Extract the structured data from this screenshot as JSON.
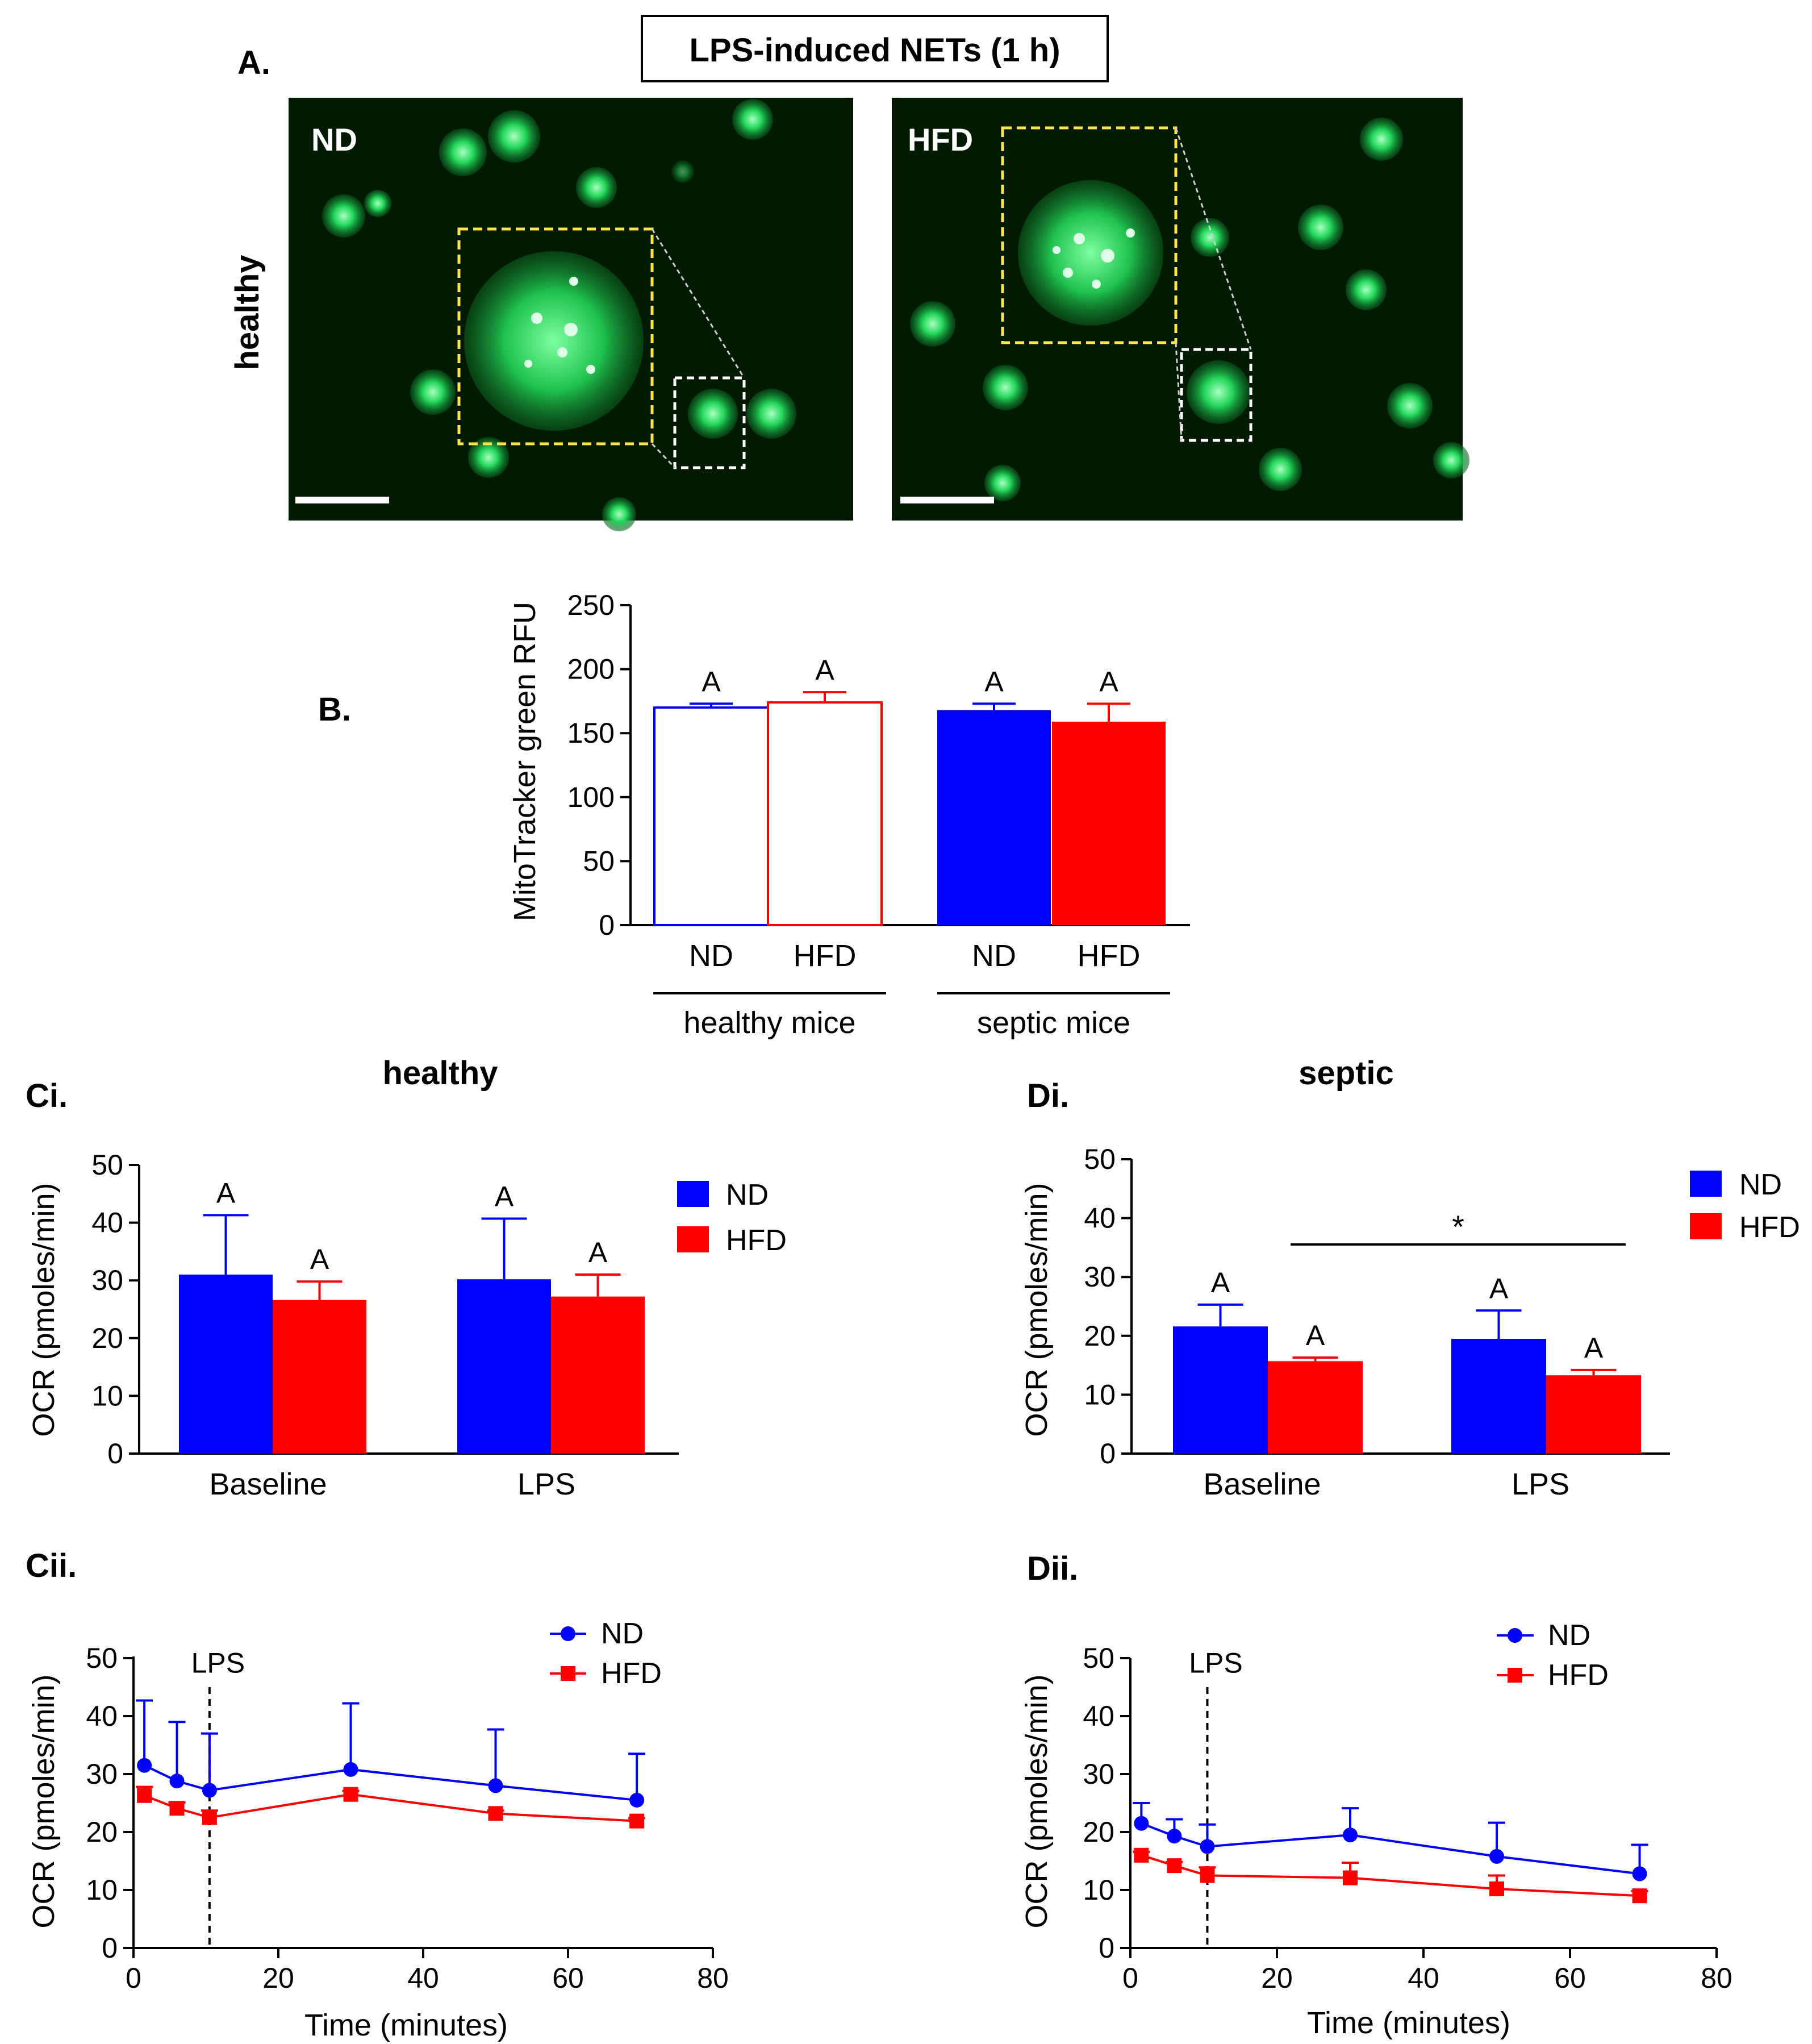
{
  "figure_title": "LPS-induced NETs (1 h)",
  "panel_labels": {
    "a": "A.",
    "b": "B.",
    "ci": "Ci.",
    "di": "Di.",
    "cii": "Cii.",
    "dii": "Dii."
  },
  "panel_a": {
    "row_label": "healthy",
    "images": [
      {
        "label": "ND",
        "description": "MitoTracker green fluorescence micrograph, neutrophils from normal-diet mice"
      },
      {
        "label": "HFD",
        "description": "MitoTracker green fluorescence micrograph, neutrophils from high-fat-diet mice"
      }
    ]
  },
  "colors": {
    "nd": "#0000ff",
    "hfd": "#ff0000",
    "axis": "#000000",
    "micrograph_bg": "#021a02",
    "cell": "#22d65a",
    "inset_yellow": "#ffe54a",
    "inset_white": "#ffffff"
  },
  "chart_data": [
    {
      "id": "B",
      "type": "bar",
      "ylabel": "MitoTracker green RFU",
      "ylim": [
        0,
        250
      ],
      "yticks": [
        0,
        50,
        100,
        150,
        200,
        250
      ],
      "categories": [
        "ND",
        "HFD",
        "ND",
        "HFD"
      ],
      "groups": [
        "healthy mice",
        "septic mice"
      ],
      "values": [
        170,
        174,
        168,
        159
      ],
      "errors": [
        3,
        8,
        5,
        14
      ],
      "annotations": [
        "A",
        "A",
        "A",
        "A"
      ],
      "styles": [
        "open-blue",
        "open-red",
        "filled-blue",
        "filled-red"
      ]
    },
    {
      "id": "Ci",
      "type": "bar",
      "title": "healthy",
      "ylabel": "OCR (pmoles/min)",
      "ylim": [
        0,
        50
      ],
      "yticks": [
        0,
        10,
        20,
        30,
        40,
        50
      ],
      "categories": [
        "Baseline",
        "LPS"
      ],
      "legend": [
        "ND",
        "HFD"
      ],
      "series": [
        {
          "name": "ND",
          "values": [
            31,
            30.2
          ],
          "errors": [
            10.3,
            10.5
          ],
          "annotations": [
            "A",
            "A"
          ]
        },
        {
          "name": "HFD",
          "values": [
            26.6,
            27.2
          ],
          "errors": [
            3.2,
            3.8
          ],
          "annotations": [
            "A",
            "A"
          ]
        }
      ]
    },
    {
      "id": "Di",
      "type": "bar",
      "title": "septic",
      "ylabel": "OCR (pmoles/min)",
      "ylim": [
        0,
        50
      ],
      "yticks": [
        0,
        10,
        20,
        30,
        40,
        50
      ],
      "categories": [
        "Baseline",
        "LPS"
      ],
      "legend": [
        "ND",
        "HFD"
      ],
      "significance": "*",
      "series": [
        {
          "name": "ND",
          "values": [
            21.6,
            19.5
          ],
          "errors": [
            3.7,
            4.8
          ],
          "annotations": [
            "A",
            "A"
          ]
        },
        {
          "name": "HFD",
          "values": [
            15.7,
            13.3
          ],
          "errors": [
            0.6,
            0.9
          ],
          "annotations": [
            "A",
            "A"
          ]
        }
      ]
    },
    {
      "id": "Cii",
      "type": "line",
      "xlabel": "Time (minutes)",
      "ylabel": "OCR (pmoles/min)",
      "xlim": [
        0,
        80
      ],
      "xticks": [
        0,
        20,
        40,
        60,
        80
      ],
      "ylim": [
        0,
        50
      ],
      "yticks": [
        0,
        10,
        20,
        30,
        40,
        50
      ],
      "vline": {
        "x": 10.5,
        "label": "LPS"
      },
      "legend": [
        "ND",
        "HFD"
      ],
      "series": [
        {
          "name": "ND",
          "x": [
            1.5,
            6,
            10.5,
            30,
            50,
            69.5
          ],
          "y": [
            31.5,
            28.8,
            27.2,
            30.8,
            28,
            25.5
          ],
          "errors": [
            11.2,
            10.2,
            9.8,
            11.4,
            9.7,
            8
          ]
        },
        {
          "name": "HFD",
          "x": [
            1.5,
            6,
            10.5,
            30,
            50,
            69.5
          ],
          "y": [
            26.3,
            24.1,
            22.5,
            26.5,
            23.2,
            21.9
          ],
          "errors": [
            1.5,
            1.0,
            1.2,
            0.6,
            0.5,
            0.5
          ]
        }
      ]
    },
    {
      "id": "Dii",
      "type": "line",
      "xlabel": "Time (minutes)",
      "ylabel": "OCR (pmoles/min)",
      "xlim": [
        0,
        80
      ],
      "xticks": [
        0,
        20,
        40,
        60,
        80
      ],
      "ylim": [
        0,
        50
      ],
      "yticks": [
        0,
        10,
        20,
        30,
        40,
        50
      ],
      "vline": {
        "x": 10.5,
        "label": "LPS"
      },
      "legend": [
        "ND",
        "HFD"
      ],
      "series": [
        {
          "name": "ND",
          "x": [
            1.5,
            6,
            10.5,
            30,
            50,
            69.5
          ],
          "y": [
            21.5,
            19.3,
            17.5,
            19.5,
            15.8,
            12.8
          ],
          "errors": [
            3.5,
            2.9,
            3.8,
            4.6,
            5.8,
            5.0
          ]
        },
        {
          "name": "HFD",
          "x": [
            1.5,
            6,
            10.5,
            30,
            50,
            69.5
          ],
          "y": [
            16,
            14.2,
            12.5,
            12.1,
            10.2,
            9.0
          ],
          "errors": [
            0.6,
            0.6,
            1.4,
            2.6,
            2.3,
            0.8
          ]
        }
      ]
    }
  ]
}
